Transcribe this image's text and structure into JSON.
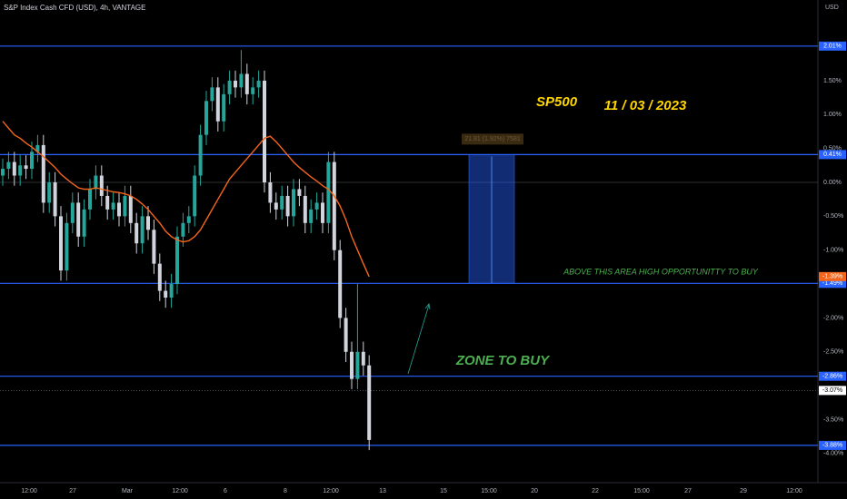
{
  "chart_data": {
    "type": "candlestick",
    "title": "S&P Index Cash CFD (USD), 4h, VANTAGE",
    "currency": "USD",
    "up_color": "#26a69a",
    "down_color": "#d1d4dc",
    "ma_color": "#f5661c",
    "level_color": "#2962ff",
    "open": [
      0.1,
      0.2,
      0.3,
      0.1,
      0.25,
      0.2,
      0.45,
      0.55,
      -0.3,
      0.0,
      -0.5,
      -1.3,
      -0.6,
      -0.3,
      -0.8,
      -0.4,
      -0.1,
      0.1,
      -0.2,
      -0.4,
      -0.3,
      -0.5,
      -0.2,
      -0.6,
      -0.9,
      -0.5,
      -0.7,
      -1.2,
      -1.6,
      -1.7,
      -1.5,
      -0.8,
      -0.6,
      -0.5,
      0.1,
      0.7,
      1.2,
      1.4,
      0.9,
      1.3,
      1.5,
      1.4,
      1.6,
      1.3,
      1.4,
      1.5,
      0.0,
      -0.3,
      -0.4,
      -0.2,
      -0.5,
      -0.1,
      -0.2,
      -0.6,
      -0.4,
      -0.3,
      -0.6,
      0.3,
      -1.0,
      -2.0,
      -2.5,
      -2.9,
      -2.5,
      -2.7
    ],
    "high": [
      0.35,
      0.45,
      0.45,
      0.4,
      0.4,
      0.6,
      0.7,
      0.7,
      0.15,
      0.15,
      -0.35,
      -0.45,
      -0.15,
      -0.15,
      -0.25,
      0.05,
      0.25,
      0.25,
      -0.05,
      -0.15,
      -0.15,
      -0.05,
      -0.05,
      -0.45,
      -0.35,
      -0.35,
      -0.55,
      -1.05,
      -1.45,
      -1.35,
      -0.65,
      -0.45,
      -0.35,
      0.25,
      0.85,
      1.35,
      1.55,
      1.55,
      1.45,
      1.65,
      1.65,
      1.95,
      1.75,
      1.55,
      1.65,
      1.65,
      0.15,
      -0.15,
      -0.05,
      -0.05,
      0.05,
      0.05,
      -0.05,
      -0.25,
      -0.15,
      -0.15,
      0.45,
      0.45,
      -0.85,
      -1.85,
      -2.35,
      -1.5,
      -2.35,
      -2.55
    ],
    "low": [
      -0.05,
      0.05,
      -0.05,
      -0.05,
      0.05,
      0.05,
      0.3,
      -0.45,
      -0.45,
      -0.65,
      -1.45,
      -1.45,
      -0.75,
      -0.95,
      -0.95,
      -0.55,
      -0.25,
      -0.35,
      -0.55,
      -0.55,
      -0.65,
      -0.65,
      -0.75,
      -1.05,
      -1.05,
      -0.85,
      -1.35,
      -1.75,
      -1.85,
      -1.85,
      -1.65,
      -0.95,
      -0.75,
      -0.65,
      -0.05,
      0.55,
      1.05,
      0.75,
      0.75,
      1.15,
      1.25,
      1.25,
      1.15,
      1.15,
      1.25,
      -0.15,
      -0.45,
      -0.55,
      -0.55,
      -0.65,
      -0.65,
      -0.35,
      -0.75,
      -0.75,
      -0.55,
      -0.75,
      -0.75,
      -1.15,
      -2.15,
      -2.65,
      -3.05,
      -3.05,
      -2.85,
      -3.95
    ],
    "close": [
      0.2,
      0.3,
      0.1,
      0.25,
      0.2,
      0.45,
      0.55,
      -0.3,
      0.0,
      -0.5,
      -1.3,
      -0.6,
      -0.3,
      -0.8,
      -0.4,
      -0.1,
      0.1,
      -0.2,
      -0.4,
      -0.3,
      -0.5,
      -0.2,
      -0.6,
      -0.9,
      -0.5,
      -0.7,
      -1.2,
      -1.6,
      -1.7,
      -1.5,
      -0.8,
      -0.6,
      -0.5,
      0.1,
      0.7,
      1.2,
      1.4,
      0.9,
      1.3,
      1.5,
      1.4,
      1.6,
      1.3,
      1.4,
      1.5,
      0.0,
      -0.3,
      -0.4,
      -0.2,
      -0.5,
      -0.1,
      -0.2,
      -0.6,
      -0.4,
      -0.3,
      -0.6,
      0.3,
      -1.0,
      -2.0,
      -2.5,
      -2.9,
      -2.5,
      -2.7,
      -3.8
    ],
    "ma": [
      0.9,
      0.8,
      0.7,
      0.65,
      0.58,
      0.52,
      0.45,
      0.38,
      0.3,
      0.22,
      0.12,
      0.05,
      -0.02,
      -0.08,
      -0.1,
      -0.1,
      -0.08,
      -0.1,
      -0.12,
      -0.14,
      -0.15,
      -0.17,
      -0.2,
      -0.25,
      -0.32,
      -0.4,
      -0.5,
      -0.6,
      -0.72,
      -0.8,
      -0.85,
      -0.88,
      -0.86,
      -0.8,
      -0.7,
      -0.55,
      -0.4,
      -0.25,
      -0.1,
      0.05,
      0.15,
      0.25,
      0.35,
      0.45,
      0.55,
      0.65,
      0.68,
      0.6,
      0.5,
      0.4,
      0.3,
      0.22,
      0.15,
      0.08,
      0.02,
      -0.05,
      -0.1,
      -0.2,
      -0.35,
      -0.55,
      -0.8,
      -1.0,
      -1.2,
      -1.39
    ],
    "ma_label": {
      "value": -1.39,
      "label": "-1.39%"
    },
    "xticks": [
      "12:00",
      "27",
      "Mar",
      "12:00",
      "6",
      "8",
      "12:00",
      "13",
      "15",
      "15:00",
      "20",
      "22",
      "15:00",
      "27",
      "29",
      "12:00"
    ],
    "ylim": [
      -4.43,
      2.69
    ],
    "yticks": [
      {
        "value": 1.5,
        "label": "1.50%"
      },
      {
        "value": 1.0,
        "label": "1.00%"
      },
      {
        "value": 0.5,
        "label": "0.50%"
      },
      {
        "value": 0,
        "label": "0.00%"
      },
      {
        "value": -0.5,
        "label": "-0.50%"
      },
      {
        "value": -1.0,
        "label": "-1.00%"
      },
      {
        "value": -2.0,
        "label": "-2.00%"
      },
      {
        "value": -2.5,
        "label": "-2.50%"
      },
      {
        "value": -3.5,
        "label": "-3.50%"
      },
      {
        "value": -4.0,
        "label": "-4.00%"
      }
    ],
    "levels": [
      {
        "value": 2.01,
        "label": "2.01%"
      },
      {
        "value": 0.41,
        "label": "0.41%"
      },
      {
        "value": -1.49,
        "label": "-1.49%"
      },
      {
        "value": -2.86,
        "label": "-2.86%"
      },
      {
        "value": -3.88,
        "label": "-3.88%"
      }
    ],
    "current": {
      "value": -3.07,
      "label": "-3.07%"
    },
    "position": {
      "top": 0.41,
      "bottom": -1.49,
      "label": "21.81 (1.92%) 7581"
    },
    "annotations": [
      "SP500",
      "11 / 03 / 2023",
      "ABOVE THIS AREA  HIGH OPPORTUNITTY TO BUY",
      "ZONE TO BUY"
    ]
  }
}
